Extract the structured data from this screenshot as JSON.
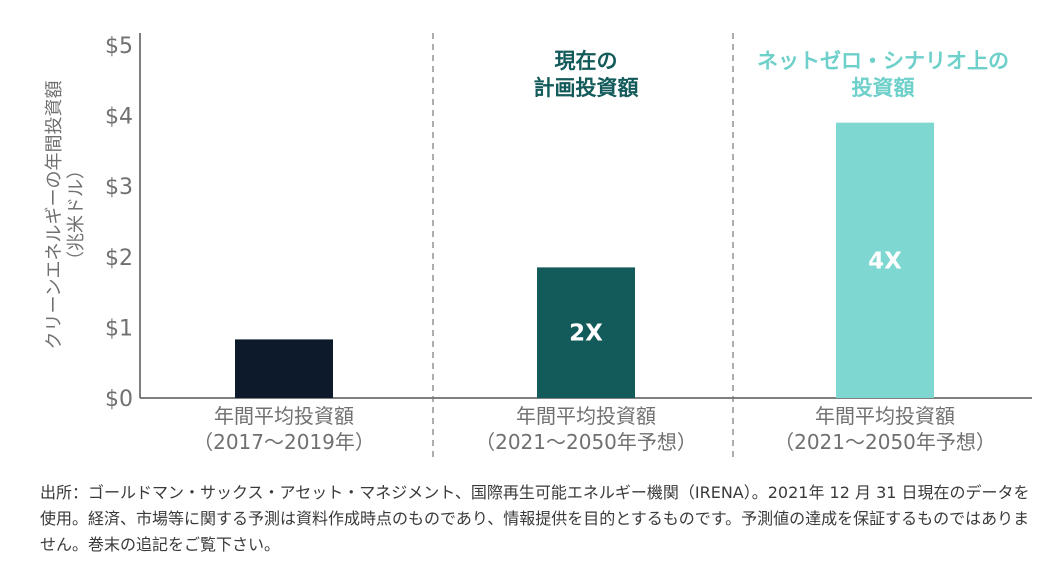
{
  "chart_data": {
    "type": "bar",
    "ylabel_line1": "クリーンエネルギーの年間投資額",
    "ylabel_line2": "（兆米ドル）",
    "ylim": [
      0,
      5
    ],
    "yticks": [
      "$0",
      "$1",
      "$2",
      "$3",
      "$4",
      "$5"
    ],
    "categories": [
      {
        "line1": "年間平均投資額",
        "line2": "（2017〜2019年）"
      },
      {
        "line1": "年間平均投資額",
        "line2": "（2021〜2050年予想）"
      },
      {
        "line1": "年間平均投資額",
        "line2": "（2021〜2050年予想）"
      }
    ],
    "values": [
      0.83,
      1.85,
      3.9
    ],
    "bar_labels": [
      "",
      "2X",
      "4X"
    ],
    "bar_colors": [
      "#0d1a2b",
      "#135a5a",
      "#7fd7d1"
    ],
    "annotations": [
      {
        "lines": [
          "現在の",
          "計画投資額"
        ],
        "color": "#135a5a"
      },
      {
        "lines": [
          "ネットゼロ・シナリオ上の",
          "投資額"
        ],
        "color": "#6ed0ca"
      }
    ]
  },
  "source_text": "出所：ゴールドマン・サックス・アセット・マネジメント、国際再生可能エネルギー機関（IRENA）。2021年 12 月 31 日現在のデータを使用。経済、市場等に関する予測は資料作成時点のものであり、情報提供を目的とするものです。予測値の達成を保証するものではありません。巻末の追記をご覧下さい。"
}
